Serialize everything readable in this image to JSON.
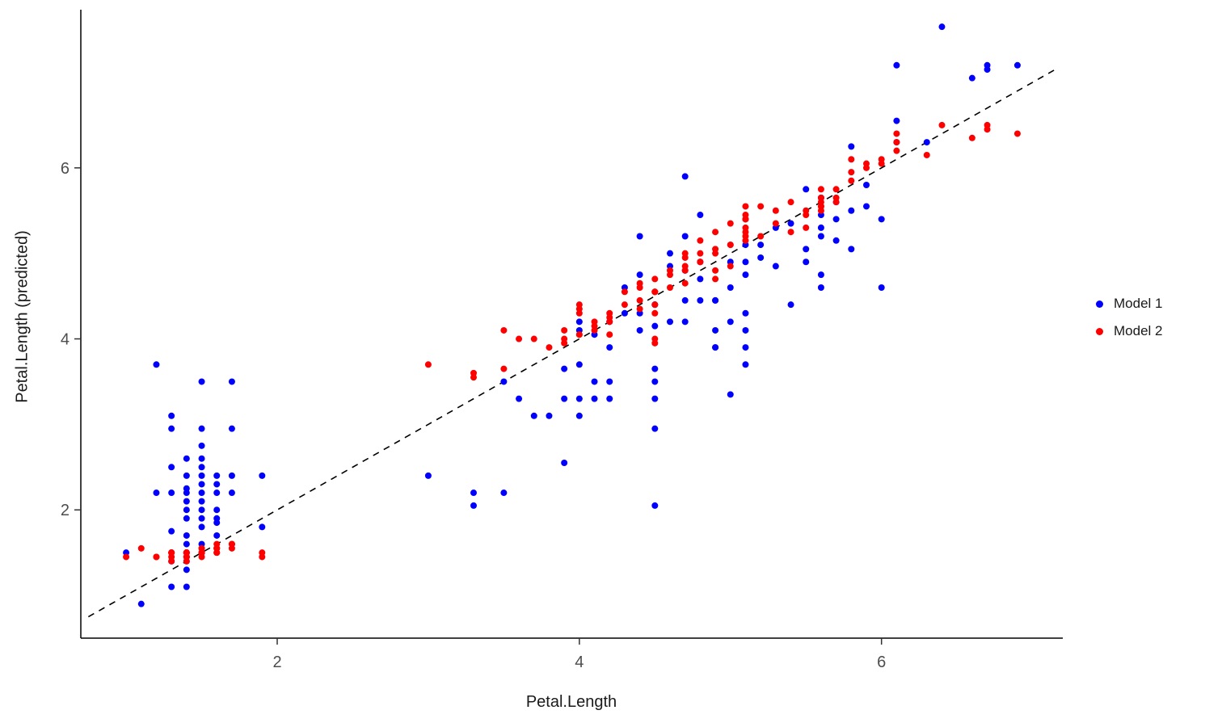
{
  "chart_data": {
    "type": "scatter",
    "title": "",
    "xlabel": "Petal.Length",
    "ylabel": "Petal.Length (predicted)",
    "xlim": [
      0.7,
      7.2
    ],
    "ylim": [
      0.5,
      7.85
    ],
    "x_ticks": [
      2,
      4,
      6
    ],
    "y_ticks": [
      2,
      4,
      6
    ],
    "grid": false,
    "legend_position": "right",
    "tick_label_color": "#4d4d4d",
    "axis_line_color": "#000000",
    "identity_line": {
      "style": "dashed",
      "color": "#000000",
      "from": [
        0.75,
        0.75
      ],
      "to": [
        7.15,
        7.15
      ]
    },
    "series": [
      {
        "name": "Model 1",
        "color": "#0000FF",
        "points": [
          [
            1.4,
            1.1
          ],
          [
            1.4,
            1.4
          ],
          [
            1.3,
            3.1
          ],
          [
            1.5,
            3.5
          ],
          [
            1.4,
            1.6
          ],
          [
            1.7,
            3.5
          ],
          [
            1.4,
            1.9
          ],
          [
            1.5,
            2.95
          ],
          [
            1.4,
            2.0
          ],
          [
            1.5,
            2.75
          ],
          [
            1.5,
            2.6
          ],
          [
            1.6,
            2.2
          ],
          [
            1.4,
            2.2
          ],
          [
            1.1,
            0.9
          ],
          [
            1.2,
            3.7
          ],
          [
            1.5,
            2.4
          ],
          [
            1.3,
            2.95
          ],
          [
            1.4,
            2.4
          ],
          [
            1.7,
            2.95
          ],
          [
            1.5,
            2.2
          ],
          [
            1.7,
            2.4
          ],
          [
            1.5,
            2.0
          ],
          [
            1.0,
            1.5
          ],
          [
            1.7,
            2.2
          ],
          [
            1.9,
            2.4
          ],
          [
            1.6,
            1.85
          ],
          [
            1.6,
            1.7
          ],
          [
            1.5,
            1.8
          ],
          [
            1.4,
            2.6
          ],
          [
            1.6,
            2.4
          ],
          [
            1.6,
            2.0
          ],
          [
            1.5,
            1.6
          ],
          [
            1.5,
            2.3
          ],
          [
            1.4,
            1.5
          ],
          [
            1.5,
            2.5
          ],
          [
            1.2,
            2.2
          ],
          [
            1.3,
            2.2
          ],
          [
            1.4,
            2.25
          ],
          [
            1.3,
            1.75
          ],
          [
            1.5,
            1.9
          ],
          [
            1.3,
            1.4
          ],
          [
            1.3,
            1.1
          ],
          [
            1.3,
            2.5
          ],
          [
            1.6,
            2.3
          ],
          [
            1.9,
            1.8
          ],
          [
            1.4,
            1.3
          ],
          [
            1.6,
            1.9
          ],
          [
            1.4,
            1.7
          ],
          [
            1.5,
            2.1
          ],
          [
            1.4,
            2.1
          ],
          [
            4.7,
            5.9
          ],
          [
            4.5,
            2.05
          ],
          [
            4.9,
            4.45
          ],
          [
            4.0,
            4.2
          ],
          [
            4.6,
            5.0
          ],
          [
            4.5,
            4.4
          ],
          [
            4.7,
            4.2
          ],
          [
            3.3,
            2.2
          ],
          [
            4.6,
            4.2
          ],
          [
            3.9,
            2.55
          ],
          [
            3.5,
            2.2
          ],
          [
            4.2,
            3.9
          ],
          [
            4.0,
            3.1
          ],
          [
            4.7,
            4.45
          ],
          [
            3.6,
            3.3
          ],
          [
            4.4,
            5.2
          ],
          [
            4.5,
            3.5
          ],
          [
            4.1,
            4.05
          ],
          [
            4.5,
            4.15
          ],
          [
            3.9,
            3.3
          ],
          [
            4.8,
            5.45
          ],
          [
            4.0,
            3.7
          ],
          [
            4.9,
            3.9
          ],
          [
            4.7,
            4.8
          ],
          [
            4.3,
            4.6
          ],
          [
            4.4,
            4.75
          ],
          [
            4.8,
            4.45
          ],
          [
            5.0,
            4.9
          ],
          [
            4.5,
            3.3
          ],
          [
            3.5,
            3.5
          ],
          [
            3.8,
            3.1
          ],
          [
            3.7,
            3.1
          ],
          [
            3.9,
            3.65
          ],
          [
            5.1,
            3.7
          ],
          [
            4.5,
            2.95
          ],
          [
            4.5,
            4.4
          ],
          [
            4.7,
            5.2
          ],
          [
            4.4,
            4.3
          ],
          [
            4.1,
            3.5
          ],
          [
            4.0,
            4.1
          ],
          [
            4.4,
            4.1
          ],
          [
            4.6,
            4.85
          ],
          [
            4.0,
            3.3
          ],
          [
            3.3,
            2.05
          ],
          [
            4.2,
            3.3
          ],
          [
            4.2,
            3.5
          ],
          [
            4.2,
            4.2
          ],
          [
            4.3,
            4.3
          ],
          [
            3.0,
            2.4
          ],
          [
            4.1,
            3.3
          ],
          [
            6.0,
            5.4
          ],
          [
            5.1,
            4.1
          ],
          [
            5.9,
            5.55
          ],
          [
            5.6,
            5.65
          ],
          [
            5.8,
            6.25
          ],
          [
            6.6,
            7.05
          ],
          [
            4.5,
            3.65
          ],
          [
            6.3,
            6.3
          ],
          [
            5.8,
            5.5
          ],
          [
            6.1,
            7.2
          ],
          [
            5.1,
            5.4
          ],
          [
            5.3,
            4.85
          ],
          [
            5.5,
            5.75
          ],
          [
            5.0,
            4.6
          ],
          [
            5.1,
            4.75
          ],
          [
            5.3,
            5.3
          ],
          [
            5.5,
            5.05
          ],
          [
            6.7,
            7.2
          ],
          [
            6.9,
            7.2
          ],
          [
            5.0,
            3.35
          ],
          [
            5.7,
            5.6
          ],
          [
            4.9,
            4.1
          ],
          [
            6.7,
            7.15
          ],
          [
            4.9,
            3.9
          ],
          [
            5.7,
            5.15
          ],
          [
            6.0,
            4.6
          ],
          [
            4.8,
            4.7
          ],
          [
            4.9,
            4.45
          ],
          [
            5.6,
            4.75
          ],
          [
            5.8,
            5.05
          ],
          [
            6.1,
            6.55
          ],
          [
            6.4,
            7.65
          ],
          [
            5.6,
            5.3
          ],
          [
            5.1,
            3.9
          ],
          [
            5.6,
            4.6
          ],
          [
            6.1,
            6.3
          ],
          [
            5.6,
            5.45
          ],
          [
            5.5,
            4.9
          ],
          [
            4.8,
            4.9
          ],
          [
            5.4,
            4.4
          ],
          [
            5.6,
            5.2
          ],
          [
            5.1,
            5.1
          ],
          [
            5.1,
            4.3
          ],
          [
            5.9,
            5.8
          ],
          [
            5.7,
            5.4
          ],
          [
            5.2,
            5.1
          ],
          [
            5.0,
            4.2
          ],
          [
            5.2,
            4.95
          ],
          [
            5.4,
            5.35
          ],
          [
            5.1,
            4.9
          ]
        ]
      },
      {
        "name": "Model 2",
        "color": "#FF0000",
        "points": [
          [
            1.4,
            1.5
          ],
          [
            1.4,
            1.45
          ],
          [
            1.3,
            1.5
          ],
          [
            1.5,
            1.55
          ],
          [
            1.4,
            1.5
          ],
          [
            1.7,
            1.6
          ],
          [
            1.4,
            1.45
          ],
          [
            1.5,
            1.5
          ],
          [
            1.4,
            1.4
          ],
          [
            1.5,
            1.5
          ],
          [
            1.5,
            1.55
          ],
          [
            1.6,
            1.5
          ],
          [
            1.4,
            1.45
          ],
          [
            1.1,
            1.55
          ],
          [
            1.2,
            1.45
          ],
          [
            1.5,
            1.5
          ],
          [
            1.3,
            1.5
          ],
          [
            1.4,
            1.5
          ],
          [
            1.7,
            1.6
          ],
          [
            1.5,
            1.5
          ],
          [
            1.7,
            1.55
          ],
          [
            1.5,
            1.5
          ],
          [
            1.0,
            1.45
          ],
          [
            1.7,
            1.6
          ],
          [
            1.9,
            1.45
          ],
          [
            1.6,
            1.5
          ],
          [
            1.6,
            1.55
          ],
          [
            1.5,
            1.5
          ],
          [
            1.4,
            1.5
          ],
          [
            1.6,
            1.55
          ],
          [
            1.6,
            1.5
          ],
          [
            1.5,
            1.5
          ],
          [
            1.5,
            1.45
          ],
          [
            1.4,
            1.5
          ],
          [
            1.5,
            1.5
          ],
          [
            1.2,
            1.45
          ],
          [
            1.3,
            1.5
          ],
          [
            1.4,
            1.5
          ],
          [
            1.3,
            1.45
          ],
          [
            1.5,
            1.5
          ],
          [
            1.3,
            1.5
          ],
          [
            1.3,
            1.4
          ],
          [
            1.3,
            1.5
          ],
          [
            1.6,
            1.6
          ],
          [
            1.9,
            1.5
          ],
          [
            1.4,
            1.45
          ],
          [
            1.6,
            1.55
          ],
          [
            1.4,
            1.5
          ],
          [
            1.5,
            1.5
          ],
          [
            1.4,
            1.5
          ],
          [
            4.7,
            4.85
          ],
          [
            4.5,
            4.4
          ],
          [
            4.9,
            5.25
          ],
          [
            4.0,
            4.05
          ],
          [
            4.6,
            4.75
          ],
          [
            4.5,
            4.55
          ],
          [
            4.7,
            5.0
          ],
          [
            3.3,
            3.55
          ],
          [
            4.6,
            4.6
          ],
          [
            3.9,
            4.0
          ],
          [
            3.5,
            3.65
          ],
          [
            4.2,
            4.2
          ],
          [
            4.0,
            4.3
          ],
          [
            4.7,
            4.8
          ],
          [
            3.6,
            4.0
          ],
          [
            4.4,
            4.6
          ],
          [
            4.5,
            4.3
          ],
          [
            4.1,
            4.15
          ],
          [
            4.5,
            3.95
          ],
          [
            3.9,
            4.1
          ],
          [
            4.8,
            5.15
          ],
          [
            4.0,
            4.35
          ],
          [
            4.9,
            4.7
          ],
          [
            4.7,
            4.65
          ],
          [
            4.3,
            4.4
          ],
          [
            4.4,
            4.65
          ],
          [
            4.8,
            4.9
          ],
          [
            5.0,
            5.1
          ],
          [
            4.5,
            4.0
          ],
          [
            3.5,
            4.1
          ],
          [
            3.8,
            3.9
          ],
          [
            3.7,
            4.0
          ],
          [
            3.9,
            3.95
          ],
          [
            5.1,
            5.4
          ],
          [
            4.5,
            4.55
          ],
          [
            4.5,
            4.7
          ],
          [
            4.7,
            4.95
          ],
          [
            4.4,
            4.45
          ],
          [
            4.1,
            4.1
          ],
          [
            4.0,
            4.4
          ],
          [
            4.4,
            4.35
          ],
          [
            4.6,
            4.8
          ],
          [
            4.0,
            4.05
          ],
          [
            3.3,
            3.6
          ],
          [
            4.2,
            4.05
          ],
          [
            4.2,
            4.25
          ],
          [
            4.2,
            4.3
          ],
          [
            4.3,
            4.55
          ],
          [
            3.0,
            3.7
          ],
          [
            4.1,
            4.2
          ],
          [
            6.0,
            6.1
          ],
          [
            5.1,
            5.4
          ],
          [
            5.9,
            6.05
          ],
          [
            5.6,
            5.55
          ],
          [
            5.8,
            5.95
          ],
          [
            6.6,
            6.35
          ],
          [
            4.5,
            4.55
          ],
          [
            6.3,
            6.15
          ],
          [
            5.8,
            6.1
          ],
          [
            6.1,
            6.3
          ],
          [
            5.1,
            5.55
          ],
          [
            5.3,
            5.5
          ],
          [
            5.5,
            5.45
          ],
          [
            5.0,
            5.1
          ],
          [
            5.1,
            5.25
          ],
          [
            5.3,
            5.35
          ],
          [
            5.5,
            5.3
          ],
          [
            6.7,
            6.45
          ],
          [
            6.9,
            6.4
          ],
          [
            5.0,
            4.85
          ],
          [
            5.7,
            5.6
          ],
          [
            4.9,
            5.05
          ],
          [
            6.7,
            6.5
          ],
          [
            4.9,
            4.8
          ],
          [
            5.7,
            5.65
          ],
          [
            6.0,
            6.05
          ],
          [
            4.8,
            4.9
          ],
          [
            4.9,
            5.0
          ],
          [
            5.6,
            5.5
          ],
          [
            5.8,
            5.85
          ],
          [
            6.1,
            6.4
          ],
          [
            6.4,
            6.5
          ],
          [
            5.6,
            5.6
          ],
          [
            5.1,
            5.2
          ],
          [
            5.6,
            5.75
          ],
          [
            6.1,
            6.2
          ],
          [
            5.6,
            5.65
          ],
          [
            5.5,
            5.5
          ],
          [
            4.8,
            5.0
          ],
          [
            5.4,
            5.25
          ],
          [
            5.6,
            5.55
          ],
          [
            5.1,
            5.3
          ],
          [
            5.1,
            5.15
          ],
          [
            5.9,
            6.0
          ],
          [
            5.7,
            5.75
          ],
          [
            5.2,
            5.55
          ],
          [
            5.0,
            5.35
          ],
          [
            5.2,
            5.2
          ],
          [
            5.4,
            5.6
          ],
          [
            5.1,
            5.45
          ]
        ]
      }
    ]
  },
  "legend": {
    "items": [
      {
        "label": "Model 1"
      },
      {
        "label": "Model 2"
      }
    ]
  }
}
